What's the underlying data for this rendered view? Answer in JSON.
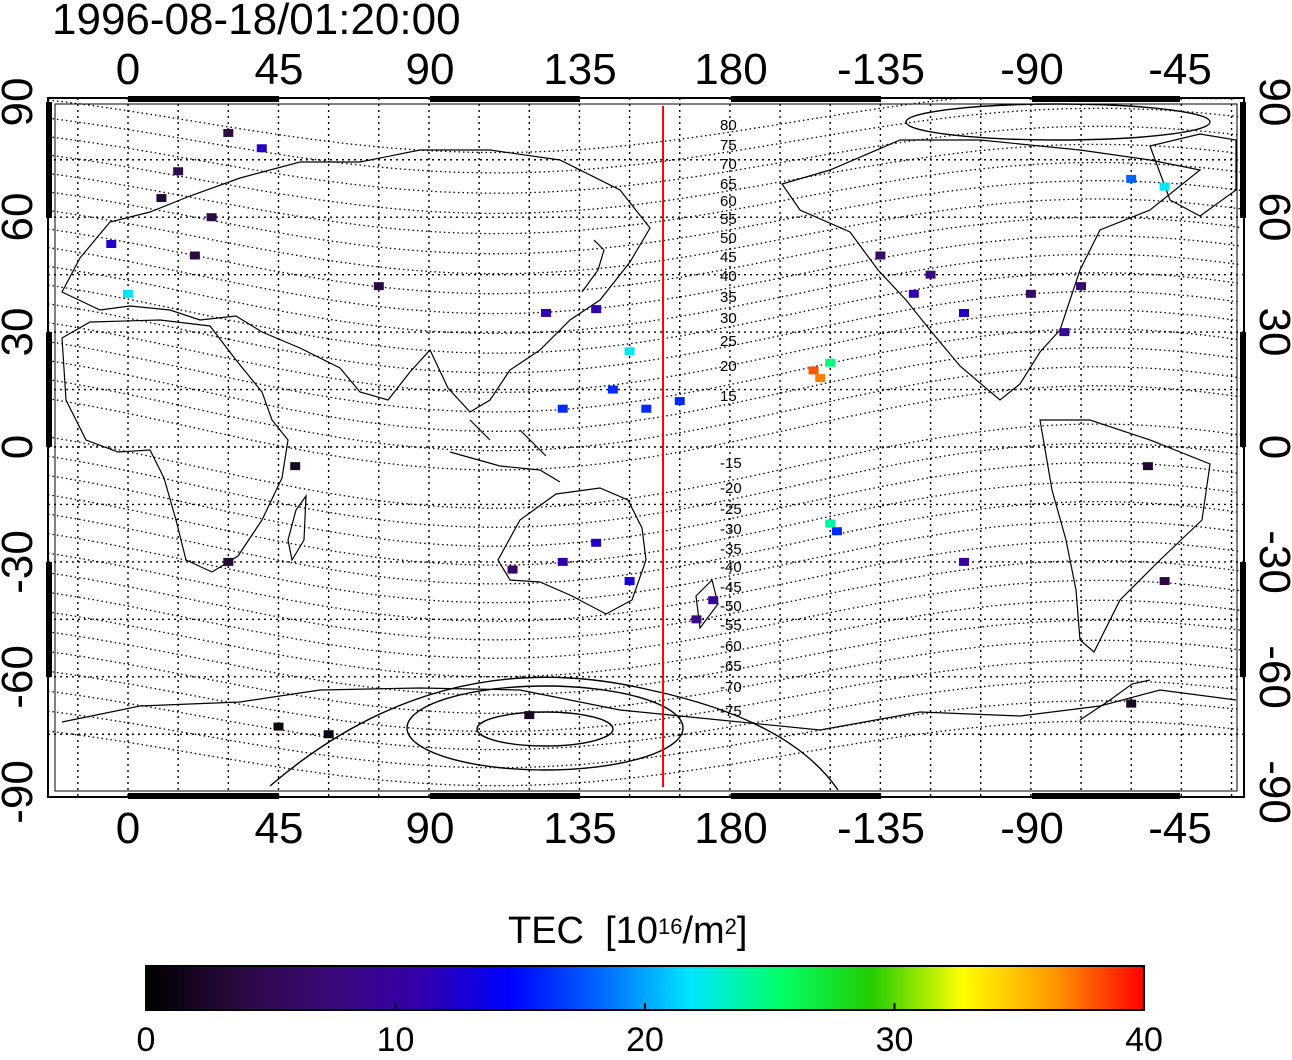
{
  "title": "1996-08-18/01:20:00",
  "map": {
    "type": "global TEC map with magnetic latitude contours",
    "projection": "equirectangular",
    "longitude_ticks": [
      "0",
      "45",
      "90",
      "135",
      "180",
      "-135",
      "-90",
      "-45"
    ],
    "latitude_ticks": [
      "90",
      "60",
      "30",
      "0",
      "-30",
      "-60",
      "-90"
    ],
    "grid": true,
    "highlighted_longitude": 160,
    "highlight_color": "#ff0000",
    "contour_labels": [
      "80",
      "75",
      "70",
      "65",
      "60",
      "55",
      "50",
      "45",
      "40",
      "35",
      "30",
      "25",
      "20",
      "15",
      "-15",
      "-20",
      "-25",
      "-30",
      "-35",
      "-40",
      "-45",
      "-50",
      "-55",
      "-60",
      "-65",
      "-70",
      "-75"
    ]
  },
  "colorbar": {
    "title": "TEC",
    "unit_prefix": "[10",
    "unit_exp": "16",
    "unit_mid": "/m",
    "unit_exp2": "2",
    "unit_suffix": "]",
    "ticks": [
      "0",
      "10",
      "20",
      "30",
      "40"
    ],
    "min": 0,
    "max": 40,
    "colors": [
      "#000000",
      "#2a0a40",
      "#3a0a78",
      "#3300aa",
      "#0000ff",
      "#0066ff",
      "#00e5ff",
      "#00ff66",
      "#22cc00",
      "#ffff00",
      "#ff9900",
      "#ff0000"
    ]
  },
  "chart_data": {
    "type": "heatmap",
    "title": "1996-08-18/01:20:00",
    "colorbar_label": "TEC [10^16/m^2]",
    "value_range": [
      0,
      40
    ],
    "xlim": [
      -25,
      340
    ],
    "ylim": [
      -90,
      90
    ],
    "points": [
      {
        "lon": 20,
        "lat": 50,
        "tec": 4
      },
      {
        "lon": 25,
        "lat": 60,
        "tec": 4
      },
      {
        "lon": 10,
        "lat": 65,
        "tec": 3
      },
      {
        "lon": 15,
        "lat": 72,
        "tec": 5
      },
      {
        "lon": -5,
        "lat": 53,
        "tec": 12
      },
      {
        "lon": 0,
        "lat": 40,
        "tec": 22
      },
      {
        "lon": 30,
        "lat": 82,
        "tec": 4
      },
      {
        "lon": 40,
        "lat": 78,
        "tec": 12
      },
      {
        "lon": 75,
        "lat": 42,
        "tec": 4
      },
      {
        "lon": 125,
        "lat": 35,
        "tec": 11
      },
      {
        "lon": 140,
        "lat": 36,
        "tec": 11
      },
      {
        "lon": 150,
        "lat": 25,
        "tec": 22
      },
      {
        "lon": 145,
        "lat": 15,
        "tec": 16
      },
      {
        "lon": 155,
        "lat": 10,
        "tec": 16
      },
      {
        "lon": 130,
        "lat": 10,
        "tec": 16
      },
      {
        "lon": 165,
        "lat": 12,
        "tec": 16
      },
      {
        "lon": 205,
        "lat": 20,
        "tec": 38
      },
      {
        "lon": 207,
        "lat": 18,
        "tec": 37
      },
      {
        "lon": 210,
        "lat": 22,
        "tec": 25
      },
      {
        "lon": 235,
        "lat": 40,
        "tec": 11
      },
      {
        "lon": 240,
        "lat": 45,
        "tec": 8
      },
      {
        "lon": 250,
        "lat": 35,
        "tec": 12
      },
      {
        "lon": 225,
        "lat": 50,
        "tec": 6
      },
      {
        "lon": 270,
        "lat": 40,
        "tec": 6
      },
      {
        "lon": 285,
        "lat": 42,
        "tec": 7
      },
      {
        "lon": 280,
        "lat": 30,
        "tec": 9
      },
      {
        "lon": 140,
        "lat": -25,
        "tec": 12
      },
      {
        "lon": 130,
        "lat": -30,
        "tec": 11
      },
      {
        "lon": 150,
        "lat": -35,
        "tec": 13
      },
      {
        "lon": 115,
        "lat": -32,
        "tec": 6
      },
      {
        "lon": 175,
        "lat": -40,
        "tec": 9
      },
      {
        "lon": 170,
        "lat": -45,
        "tec": 8
      },
      {
        "lon": 210,
        "lat": -20,
        "tec": 24
      },
      {
        "lon": 212,
        "lat": -22,
        "tec": 16
      },
      {
        "lon": 250,
        "lat": -30,
        "tec": 10
      },
      {
        "lon": 305,
        "lat": -5,
        "tec": 3
      },
      {
        "lon": 310,
        "lat": -35,
        "tec": 4
      },
      {
        "lon": 50,
        "lat": -5,
        "tec": 2
      },
      {
        "lon": 30,
        "lat": -30,
        "tec": 3
      },
      {
        "lon": 45,
        "lat": -73,
        "tec": 1
      },
      {
        "lon": 60,
        "lat": -75,
        "tec": 1
      },
      {
        "lon": 120,
        "lat": -70,
        "tec": 2
      },
      {
        "lon": 300,
        "lat": -67,
        "tec": 2
      },
      {
        "lon": 300,
        "lat": 70,
        "tec": 18
      },
      {
        "lon": 310,
        "lat": 68,
        "tec": 22
      }
    ]
  }
}
